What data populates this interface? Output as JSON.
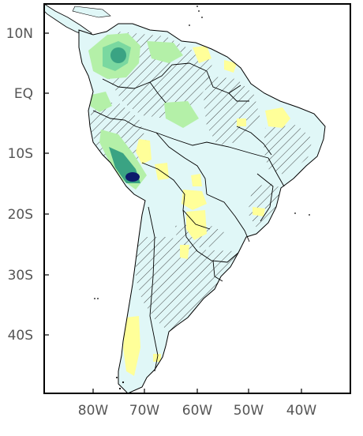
{
  "map": {
    "colors": {
      "ocean": "#ffffff",
      "land_base": "#e0f7f7",
      "yellow": "#ffff99",
      "light_green": "#b4f0a8",
      "green": "#7ad8a0",
      "teal": "#3aa383",
      "dark_teal": "#1a7a6a",
      "navy": "#0d1a6b",
      "hatch": "#333333",
      "border": "#000000"
    },
    "lat_labels": [
      "10N",
      "EQ",
      "10S",
      "20S",
      "30S",
      "40S"
    ],
    "lon_labels": [
      "80W",
      "70W",
      "60W",
      "50W",
      "40W"
    ]
  }
}
